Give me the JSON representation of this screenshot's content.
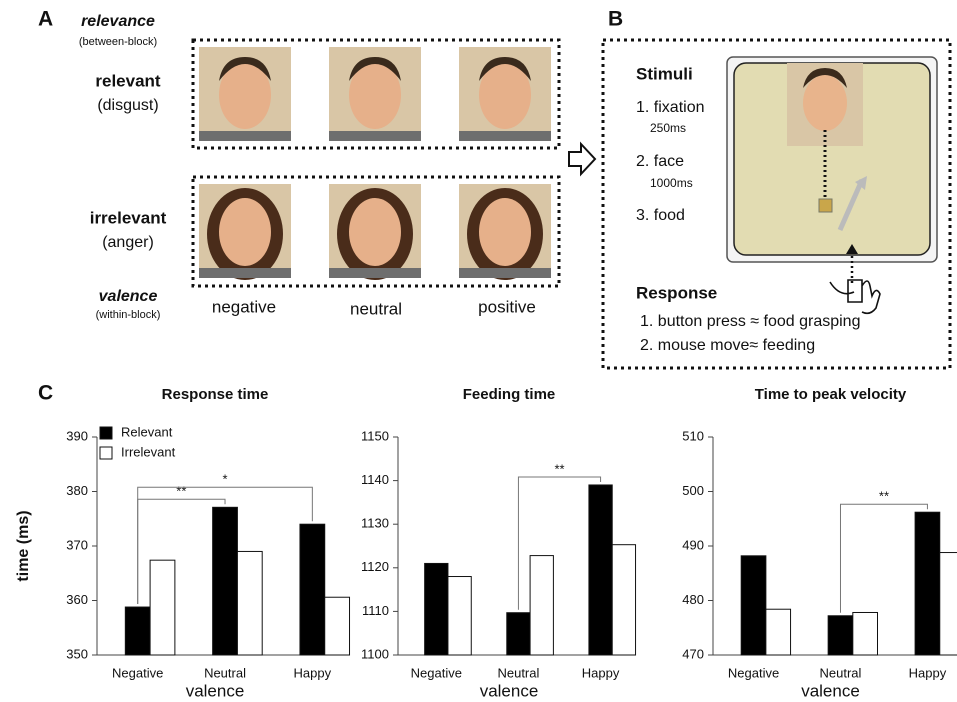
{
  "panel_a": {
    "label": "A",
    "relevance": "relevance",
    "relevance_note": "(between-block)",
    "rows": [
      {
        "label": "relevant",
        "emotion": "(disgust)"
      },
      {
        "label": "irrelevant",
        "emotion": "(anger)"
      }
    ],
    "valence": "valence",
    "valence_note": "(within-block)",
    "columns": [
      "negative",
      "neutral",
      "positive"
    ]
  },
  "panel_b": {
    "label": "B",
    "stimuli_title": "Stimuli",
    "stimuli": [
      {
        "text": "1. fixation",
        "duration": "250ms"
      },
      {
        "text": "2. face",
        "duration": "1000ms"
      },
      {
        "text": "3. food"
      }
    ],
    "response_title": "Response",
    "responses": [
      "1. button press ≈ food grasping",
      "2. mouse move≈ feeding"
    ]
  },
  "panel_c": {
    "label": "C"
  },
  "chart_data": [
    {
      "type": "bar",
      "title": "Response time",
      "y_label": "time (ms)",
      "x_label": "valence",
      "categories": [
        "Negative",
        "Neutral",
        "Happy"
      ],
      "series": [
        {
          "name": "Relevant",
          "color": "#000000",
          "values": [
            358.8,
            377.1,
            374.0
          ]
        },
        {
          "name": "Irrelevant",
          "color": "#ffffff",
          "values": [
            367.4,
            369.0,
            360.6
          ]
        }
      ],
      "ylim": [
        350,
        390
      ],
      "yticks": [
        350,
        360,
        370,
        380,
        390
      ],
      "legend": "top-left",
      "annotations": [
        {
          "text": "**",
          "between": [
            "Negative",
            "Neutral"
          ]
        },
        {
          "text": "*",
          "between": [
            "Negative",
            "Happy"
          ]
        }
      ]
    },
    {
      "type": "bar",
      "title": "Feeding time",
      "x_label": "valence",
      "categories": [
        "Negative",
        "Neutral",
        "Happy"
      ],
      "series": [
        {
          "name": "Relevant",
          "color": "#000000",
          "values": [
            1121.0,
            1109.7,
            1139.0
          ]
        },
        {
          "name": "Irrelevant",
          "color": "#ffffff",
          "values": [
            1118.0,
            1122.8,
            1125.3
          ]
        }
      ],
      "ylim": [
        1100,
        1150
      ],
      "yticks": [
        1100,
        1110,
        1120,
        1130,
        1140,
        1150
      ],
      "annotations": [
        {
          "text": "**",
          "between": [
            "Neutral",
            "Happy"
          ]
        }
      ]
    },
    {
      "type": "bar",
      "title": "Time to peak velocity",
      "x_label": "valence",
      "categories": [
        "Negative",
        "Neutral",
        "Happy"
      ],
      "series": [
        {
          "name": "Relevant",
          "color": "#000000",
          "values": [
            488.2,
            477.2,
            496.2
          ]
        },
        {
          "name": "Irrelevant",
          "color": "#ffffff",
          "values": [
            478.4,
            477.8,
            488.8
          ]
        }
      ],
      "ylim": [
        470,
        510
      ],
      "yticks": [
        470,
        480,
        490,
        500,
        510
      ],
      "annotations": [
        {
          "text": "**",
          "between": [
            "Neutral",
            "Happy"
          ]
        }
      ]
    }
  ]
}
